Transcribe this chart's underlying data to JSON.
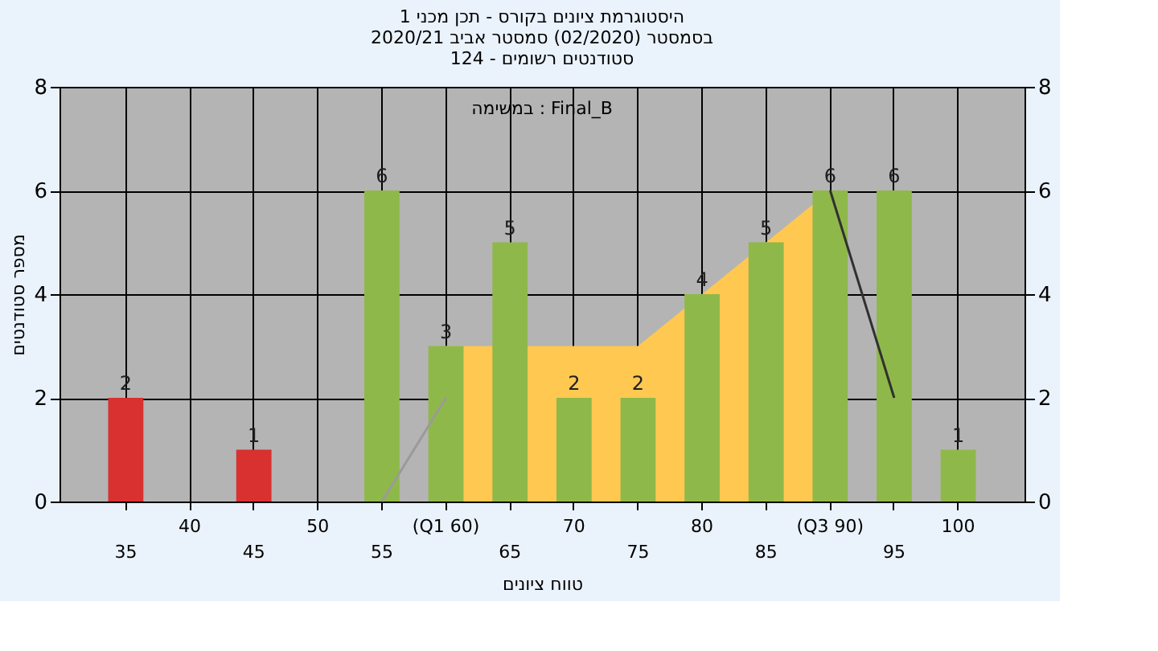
{
  "chart_data": {
    "type": "bar",
    "title": [
      "היסטוגרמת ציונים בקורס - תכן מכני 1",
      "בסמסטר  (02/2020)  סמסטר אביב 2020/21",
      "סטודנטים רשומים - 124"
    ],
    "xlabel": "טווח ציונים",
    "ylabel": "מספר סטודנטים",
    "annotations": [
      "במשימה : Final_B"
    ],
    "categories": [
      "35",
      "40",
      "45",
      "50",
      "55",
      "(Q1 60)",
      "65",
      "70",
      "75",
      "80",
      "85",
      "(Q3 90)",
      "95",
      "100"
    ],
    "series": [
      {
        "type": "area",
        "color": "#ffc850",
        "values": [
          null,
          null,
          null,
          null,
          null,
          3,
          null,
          3,
          3,
          4,
          5,
          6,
          null,
          null
        ]
      },
      {
        "type": "line",
        "color": "#9a9a9a",
        "values": [
          null,
          null,
          null,
          null,
          0,
          2,
          null,
          null,
          null,
          null,
          null,
          null,
          null,
          null
        ]
      },
      {
        "type": "line",
        "color": "#303030",
        "values": [
          null,
          null,
          null,
          null,
          null,
          null,
          null,
          null,
          null,
          null,
          null,
          6,
          2,
          null
        ]
      },
      {
        "values": [
          2,
          null,
          1,
          null,
          6,
          3,
          5,
          2,
          2,
          4,
          5,
          6,
          6,
          1
        ],
        "value_labels": [
          "2",
          null,
          "1",
          null,
          "6",
          "3",
          "5",
          "2",
          "2",
          "4",
          "5",
          "6",
          "6",
          "1"
        ],
        "colors": [
          "#d93030",
          "#8fb84a",
          "#d93030",
          "#8fb84a",
          "#8fb84a",
          "#8fb84a",
          "#8fb84a",
          "#8fb84a",
          "#8fb84a",
          "#8fb84a",
          "#8fb84a",
          "#8fb84a",
          "#8fb84a",
          "#8fb84a"
        ]
      }
    ],
    "ylim": [
      0,
      8
    ],
    "yticks": [
      0,
      2,
      4,
      6,
      8
    ],
    "y2lim": [
      0,
      8
    ],
    "y2ticks": [
      0,
      2,
      4,
      6,
      8
    ],
    "grid": true
  }
}
